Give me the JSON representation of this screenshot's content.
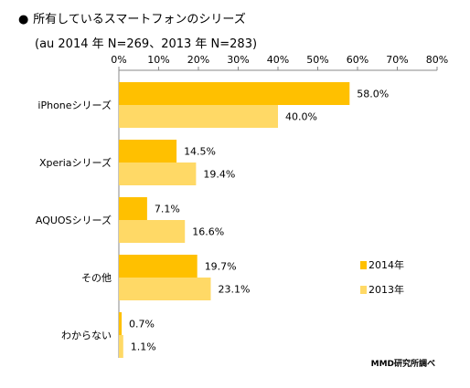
{
  "chart_data": {
    "type": "bar",
    "orientation": "horizontal",
    "title": "所有しているスマートフォンのシリーズ",
    "subtitle": "(au 2014 年 N=269、2013 年 N=283)",
    "categories": [
      "iPhoneシリーズ",
      "Xperiaシリーズ",
      "AQUOSシリーズ",
      "その他",
      "わからない"
    ],
    "series": [
      {
        "name": "2014年",
        "values": [
          58.0,
          14.5,
          7.1,
          19.7,
          0.7
        ],
        "labels": [
          "58.0%",
          "14.5%",
          "7.1%",
          "19.7%",
          "0.7%"
        ],
        "color": "#FFC000"
      },
      {
        "name": "2013年",
        "values": [
          40.0,
          19.4,
          16.6,
          23.1,
          1.1
        ],
        "labels": [
          "40.0%",
          "19.4%",
          "16.6%",
          "23.1%",
          "1.1%"
        ],
        "color": "#FFD966"
      }
    ],
    "xticks": [
      "0%",
      "10%",
      "20%",
      "30%",
      "40%",
      "50%",
      "60%",
      "70%",
      "80%"
    ],
    "xlim": [
      0,
      80
    ],
    "grid": false,
    "legend": "right",
    "credit": "MMD研究所調べ"
  }
}
